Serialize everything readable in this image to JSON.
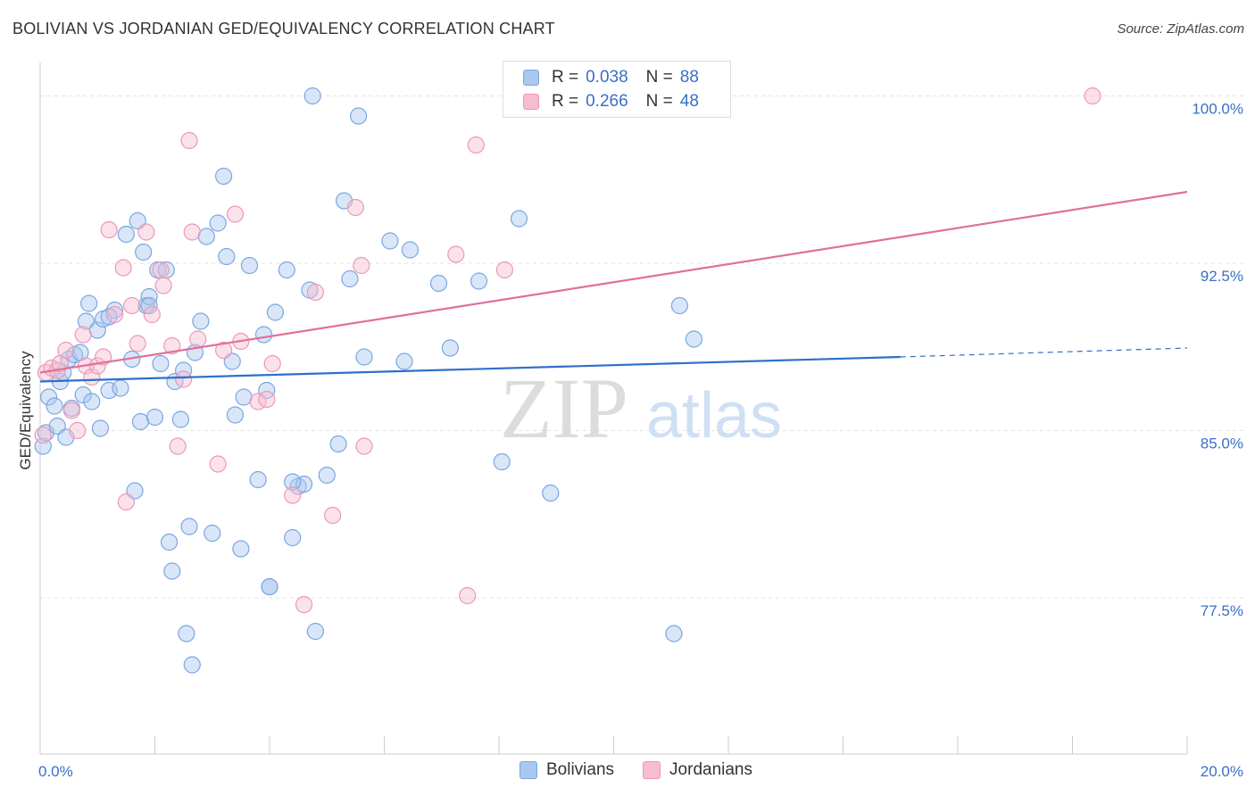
{
  "title": "BOLIVIAN VS JORDANIAN GED/EQUIVALENCY CORRELATION CHART",
  "source": "Source: ZipAtlas.com",
  "watermark": {
    "zip": "ZIP",
    "atlas": "atlas"
  },
  "legend": {
    "series": [
      {
        "r_label": "R =",
        "r_value": "0.038",
        "n_label": "N =",
        "n_value": "88"
      },
      {
        "r_label": "R =",
        "r_value": "0.266",
        "n_label": "N =",
        "n_value": "48"
      }
    ]
  },
  "bottom_legend": [
    "Bolivians",
    "Jordanians"
  ],
  "chart_data": {
    "type": "scatter",
    "title": "BOLIVIAN VS JORDANIAN GED/EQUIVALENCY CORRELATION CHART",
    "xlabel": "",
    "ylabel": "GED/Equivalency",
    "xlim": [
      0,
      20
    ],
    "ylim": [
      70.5,
      101.5
    ],
    "x_tick_labels": [
      {
        "value": 0,
        "label": "0.0%"
      },
      {
        "value": 20,
        "label": "20.0%"
      }
    ],
    "y_tick_labels": [
      {
        "value": 77.5,
        "label": "77.5%"
      },
      {
        "value": 85.0,
        "label": "85.0%"
      },
      {
        "value": 92.5,
        "label": "92.5%"
      },
      {
        "value": 100.0,
        "label": "100.0%"
      }
    ],
    "colors": {
      "bolivians_fill": "#a8c8f0",
      "bolivians_stroke": "#7aa6e0",
      "bolivians_line": "#2f6fcc",
      "jordanians_fill": "#f7bcd0",
      "jordanians_stroke": "#eb98b6",
      "jordanians_line": "#e0719a",
      "tick_label": "#3a6fc8"
    },
    "series": [
      {
        "name": "Bolivians",
        "r": 0.038,
        "n": 88,
        "trend": {
          "x0": 0,
          "y0": 87.2,
          "x1": 15.0,
          "y1": 88.3,
          "dash_x1": 20,
          "dash_y1": 88.7
        },
        "points": [
          [
            0.05,
            84.3
          ],
          [
            0.1,
            84.9
          ],
          [
            0.15,
            86.5
          ],
          [
            0.25,
            86.1
          ],
          [
            0.3,
            85.2
          ],
          [
            0.35,
            87.2
          ],
          [
            0.4,
            87.6
          ],
          [
            0.45,
            84.7
          ],
          [
            0.5,
            88.2
          ],
          [
            0.55,
            86.0
          ],
          [
            0.6,
            88.4
          ],
          [
            0.7,
            88.5
          ],
          [
            0.75,
            86.6
          ],
          [
            0.8,
            89.9
          ],
          [
            0.85,
            90.7
          ],
          [
            0.9,
            86.3
          ],
          [
            1.0,
            89.5
          ],
          [
            1.05,
            85.1
          ],
          [
            1.1,
            90.0
          ],
          [
            1.2,
            86.8
          ],
          [
            1.3,
            90.4
          ],
          [
            1.4,
            86.9
          ],
          [
            1.5,
            93.8
          ],
          [
            1.6,
            88.2
          ],
          [
            1.65,
            82.3
          ],
          [
            1.7,
            94.4
          ],
          [
            1.75,
            85.4
          ],
          [
            1.8,
            93.0
          ],
          [
            1.85,
            90.6
          ],
          [
            1.9,
            91.0
          ],
          [
            2.0,
            85.6
          ],
          [
            2.05,
            92.2
          ],
          [
            2.1,
            88.0
          ],
          [
            2.2,
            92.2
          ],
          [
            2.25,
            80.0
          ],
          [
            2.3,
            78.7
          ],
          [
            2.35,
            87.2
          ],
          [
            2.45,
            85.5
          ],
          [
            2.5,
            87.7
          ],
          [
            2.6,
            80.7
          ],
          [
            2.65,
            74.5
          ],
          [
            2.7,
            88.5
          ],
          [
            2.8,
            89.9
          ],
          [
            2.9,
            93.7
          ],
          [
            3.0,
            80.4
          ],
          [
            3.1,
            94.3
          ],
          [
            3.2,
            96.4
          ],
          [
            3.25,
            92.8
          ],
          [
            3.35,
            88.1
          ],
          [
            3.4,
            85.7
          ],
          [
            3.5,
            79.7
          ],
          [
            3.65,
            92.4
          ],
          [
            3.8,
            82.8
          ],
          [
            3.9,
            89.3
          ],
          [
            3.95,
            86.8
          ],
          [
            4.1,
            90.3
          ],
          [
            4.3,
            92.2
          ],
          [
            4.4,
            80.2
          ],
          [
            4.5,
            82.5
          ],
          [
            4.6,
            82.6
          ],
          [
            4.7,
            91.3
          ],
          [
            4.75,
            100.0
          ],
          [
            4.8,
            76.0
          ],
          [
            5.0,
            83.0
          ],
          [
            5.2,
            84.4
          ],
          [
            5.3,
            95.3
          ],
          [
            5.4,
            91.8
          ],
          [
            5.55,
            99.1
          ],
          [
            5.65,
            88.3
          ],
          [
            6.1,
            93.5
          ],
          [
            6.35,
            88.1
          ],
          [
            6.45,
            93.1
          ],
          [
            6.95,
            91.6
          ],
          [
            7.15,
            88.7
          ],
          [
            7.65,
            91.7
          ],
          [
            8.05,
            83.6
          ],
          [
            8.35,
            94.5
          ],
          [
            8.9,
            82.2
          ],
          [
            11.05,
            75.9
          ],
          [
            11.15,
            90.6
          ],
          [
            11.4,
            89.1
          ],
          [
            3.55,
            86.5
          ],
          [
            2.55,
            75.9
          ],
          [
            4.0,
            78.0
          ],
          [
            1.9,
            90.6
          ],
          [
            4.4,
            82.7
          ],
          [
            1.2,
            90.1
          ],
          [
            4.0,
            78.0
          ]
        ]
      },
      {
        "name": "Jordanians",
        "r": 0.266,
        "n": 48,
        "trend": {
          "x0": 0,
          "y0": 87.6,
          "x1": 20,
          "y1": 95.7
        },
        "points": [
          [
            0.1,
            87.6
          ],
          [
            0.2,
            87.8
          ],
          [
            0.3,
            87.7
          ],
          [
            0.35,
            88.0
          ],
          [
            0.45,
            88.6
          ],
          [
            0.55,
            85.9
          ],
          [
            0.65,
            85.0
          ],
          [
            0.75,
            89.3
          ],
          [
            0.8,
            87.9
          ],
          [
            0.9,
            87.4
          ],
          [
            1.0,
            87.9
          ],
          [
            1.1,
            88.3
          ],
          [
            1.2,
            94.0
          ],
          [
            1.3,
            90.2
          ],
          [
            1.45,
            92.3
          ],
          [
            1.5,
            81.8
          ],
          [
            1.6,
            90.6
          ],
          [
            1.7,
            88.9
          ],
          [
            1.85,
            93.9
          ],
          [
            1.95,
            90.2
          ],
          [
            2.1,
            92.2
          ],
          [
            2.15,
            91.5
          ],
          [
            2.3,
            88.8
          ],
          [
            2.4,
            84.3
          ],
          [
            2.5,
            87.3
          ],
          [
            2.6,
            98.0
          ],
          [
            2.65,
            93.9
          ],
          [
            2.75,
            89.1
          ],
          [
            3.1,
            83.5
          ],
          [
            3.2,
            88.6
          ],
          [
            3.4,
            94.7
          ],
          [
            3.5,
            89.0
          ],
          [
            3.8,
            86.3
          ],
          [
            3.95,
            86.4
          ],
          [
            4.05,
            88.0
          ],
          [
            4.4,
            82.1
          ],
          [
            4.6,
            77.2
          ],
          [
            4.8,
            91.2
          ],
          [
            5.1,
            81.2
          ],
          [
            5.5,
            95.0
          ],
          [
            5.6,
            92.4
          ],
          [
            5.65,
            84.3
          ],
          [
            7.25,
            92.9
          ],
          [
            7.45,
            77.6
          ],
          [
            7.6,
            97.8
          ],
          [
            8.1,
            92.2
          ],
          [
            18.35,
            100.0
          ],
          [
            0.05,
            84.8
          ]
        ]
      }
    ]
  }
}
